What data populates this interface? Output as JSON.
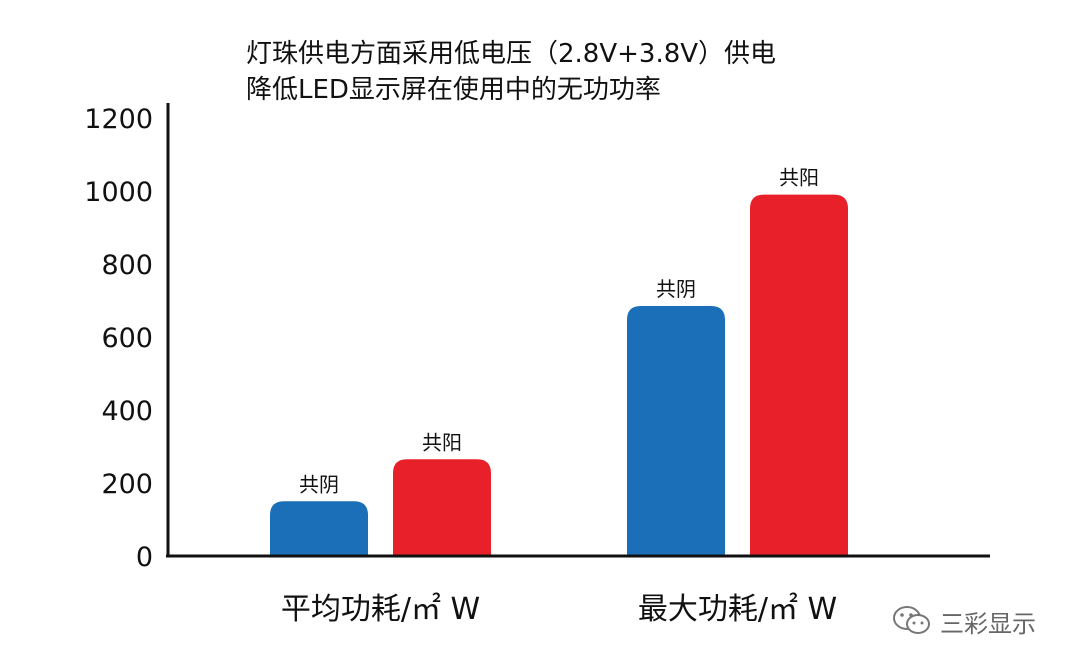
{
  "chart_data": {
    "type": "bar",
    "title": [
      "灯珠供电方面采用低电压（2.8V+3.8V）供电",
      "降低LED显示屏在使用中的无功功率"
    ],
    "categories": [
      "平均功耗/㎡ W",
      "最大功耗/㎡ W"
    ],
    "series": [
      {
        "name": "共阴",
        "color": "#1a6fb8",
        "values": [
          150,
          685
        ]
      },
      {
        "name": "共阳",
        "color": "#e8202a",
        "values": [
          265,
          990
        ]
      }
    ],
    "ylim": [
      0,
      1200
    ],
    "yticks": [
      "0",
      "200",
      "400",
      "600",
      "800",
      "1000",
      "1200"
    ],
    "ytick_values": [
      0,
      200,
      400,
      600,
      800,
      1000,
      1200
    ],
    "grid": false,
    "legend": "none"
  },
  "watermark": {
    "icon": "wechat-icon",
    "text": "三彩显示"
  }
}
